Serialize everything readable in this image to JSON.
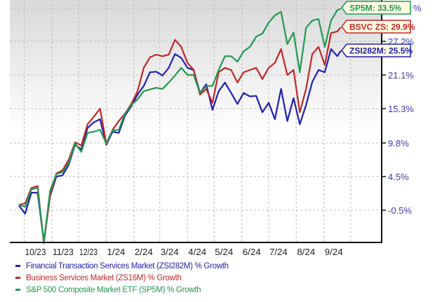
{
  "chart_data": {
    "type": "line",
    "title": "",
    "xlabel": "",
    "ylabel": "",
    "y_tick_labels": [
      "27.2%",
      "21.1%",
      "15.3%",
      "9.8%",
      "4.5%",
      "-0.5%"
    ],
    "y_ticks": [
      27.2,
      21.1,
      15.3,
      9.8,
      4.5,
      -0.5
    ],
    "x_tick_labels": [
      "10/23",
      "11/23",
      "12/23",
      "1/24",
      "2/24",
      "3/24",
      "4/24",
      "5/24",
      "6/24",
      "7/24",
      "8/24",
      "9/24"
    ],
    "grid": true,
    "y_axis_side": "right",
    "legend_placement": "bottom",
    "x": [
      "2023-09-25",
      "2023-10-02",
      "2023-10-09",
      "2023-10-16",
      "2023-10-23",
      "2023-10-30",
      "2023-11-06",
      "2023-11-13",
      "2023-11-20",
      "2023-11-27",
      "2023-12-04",
      "2023-12-11",
      "2023-12-18",
      "2023-12-25",
      "2024-01-01",
      "2024-01-08",
      "2024-01-15",
      "2024-01-22",
      "2024-01-29",
      "2024-02-05",
      "2024-02-12",
      "2024-02-19",
      "2024-02-26",
      "2024-03-04",
      "2024-03-11",
      "2024-03-18",
      "2024-03-25",
      "2024-04-01",
      "2024-04-08",
      "2024-04-15",
      "2024-04-22",
      "2024-04-29",
      "2024-05-06",
      "2024-05-13",
      "2024-05-20",
      "2024-05-27",
      "2024-06-03",
      "2024-06-10",
      "2024-06-17",
      "2024-06-24",
      "2024-07-01",
      "2024-07-08",
      "2024-07-15",
      "2024-07-22",
      "2024-07-29",
      "2024-08-05",
      "2024-08-12",
      "2024-08-19",
      "2024-08-26",
      "2024-09-02",
      "2024-09-09",
      "2024-09-16",
      "2024-09-20"
    ],
    "series": [
      {
        "name": "Financial Transaction Services Market (ZSI282M) % Growth",
        "color": "#2020b0",
        "end_label": "ZSI282M: 25.5%",
        "values": [
          0.2,
          -1.0,
          2.1,
          2.1,
          -5.0,
          1.6,
          4.5,
          4.7,
          6.4,
          9.5,
          8.8,
          12.2,
          13.1,
          13.6,
          9.5,
          11.6,
          11.4,
          14.2,
          15.7,
          17.7,
          19.2,
          21.6,
          21.7,
          21.0,
          22.4,
          24.9,
          24.2,
          22.4,
          22.0,
          18.0,
          19.5,
          15.1,
          18.3,
          19.8,
          18.0,
          16.1,
          18.0,
          17.4,
          17.5,
          14.7,
          16.3,
          13.6,
          18.7,
          13.3,
          17.1,
          12.8,
          15.9,
          19.9,
          22.0,
          21.6,
          25.8,
          24.5,
          25.5
        ]
      },
      {
        "name": "Business Services Market (ZS16M) % Growth",
        "color": "#c02828",
        "end_label": "BSVC ZS: 29.9%",
        "values": [
          0.3,
          0.5,
          2.8,
          3.1,
          -5.2,
          1.8,
          5.0,
          5.5,
          7.2,
          9.9,
          9.4,
          12.8,
          14.0,
          15.3,
          9.7,
          11.9,
          13.3,
          14.5,
          16.1,
          18.3,
          22.4,
          24.3,
          24.8,
          24.5,
          24.8,
          27.5,
          26.2,
          23.3,
          22.0,
          17.7,
          18.7,
          16.3,
          21.6,
          22.4,
          22.0,
          19.8,
          21.6,
          22.0,
          22.4,
          20.4,
          22.4,
          23.3,
          25.8,
          21.1,
          22.0,
          14.7,
          18.7,
          24.9,
          26.2,
          22.9,
          28.8,
          29.1,
          29.9
        ]
      },
      {
        "name": "S&P 500 Composite Market ETF (SP5M) % Growth",
        "color": "#229950",
        "end_label": "SP5M: 33.5%",
        "values": [
          0.3,
          0.0,
          2.6,
          2.8,
          -5.0,
          2.4,
          4.9,
          5.2,
          6.7,
          9.7,
          8.4,
          11.4,
          11.6,
          11.9,
          9.7,
          11.8,
          11.9,
          14.5,
          15.9,
          16.9,
          18.3,
          18.6,
          18.9,
          18.7,
          19.8,
          21.0,
          22.4,
          21.1,
          21.1,
          18.0,
          19.2,
          19.2,
          22.0,
          24.5,
          24.5,
          23.5,
          25.4,
          26.2,
          28.1,
          28.7,
          30.8,
          32.2,
          32.9,
          26.7,
          28.9,
          21.6,
          29.8,
          31.2,
          31.5,
          26.2,
          31.2,
          33.2,
          33.5
        ]
      }
    ]
  },
  "colors": {
    "label_fill": "#fffbe3",
    "axis": "#111111",
    "grid": "#bbbbbb",
    "tick_text": "#3b3bb0"
  }
}
